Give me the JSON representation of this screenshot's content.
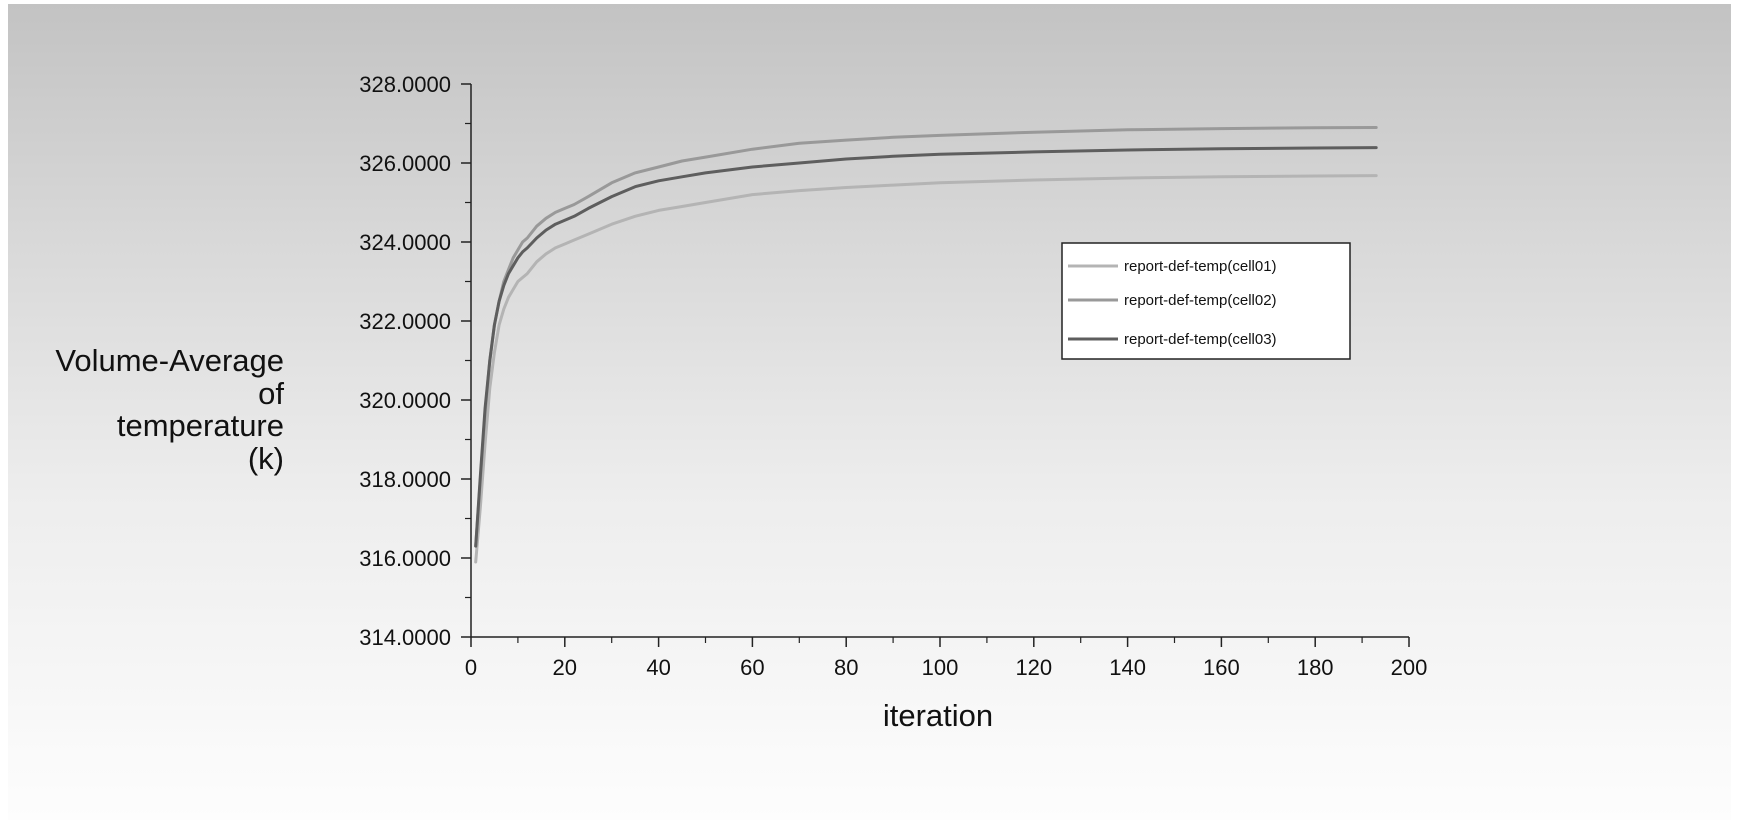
{
  "chart_data": {
    "type": "line",
    "title": "",
    "xlabel": "iteration",
    "ylabel_lines": [
      "Volume-Average",
      "of",
      "temperature",
      "(k)"
    ],
    "xlim": [
      0,
      200
    ],
    "ylim": [
      314,
      328
    ],
    "x_ticks": [
      0,
      20,
      40,
      60,
      80,
      100,
      120,
      140,
      160,
      180,
      200
    ],
    "x_tick_labels": [
      "0",
      "20",
      "40",
      "60",
      "80",
      "100",
      "120",
      "140",
      "160",
      "180",
      "200"
    ],
    "y_ticks": [
      314,
      316,
      318,
      320,
      322,
      324,
      326,
      328
    ],
    "y_tick_labels": [
      "314.0000",
      "316.0000",
      "318.0000",
      "320.0000",
      "322.0000",
      "324.0000",
      "326.0000",
      "328.0000"
    ],
    "grid": false,
    "legend_position": "right",
    "series": [
      {
        "name": "report-def-temp(cell01)",
        "color": "#b4b4b4",
        "x": [
          1,
          2,
          3,
          4,
          5,
          6,
          7,
          8,
          9,
          10,
          11,
          12,
          14,
          16,
          18,
          20,
          22,
          25,
          30,
          35,
          40,
          45,
          50,
          60,
          70,
          80,
          90,
          100,
          120,
          140,
          160,
          180,
          193
        ],
        "values": [
          315.9,
          317.3,
          318.9,
          320.3,
          321.2,
          321.9,
          322.3,
          322.6,
          322.8,
          323.0,
          323.1,
          323.2,
          323.5,
          323.7,
          323.85,
          323.95,
          324.05,
          324.2,
          324.45,
          324.65,
          324.8,
          324.9,
          325.0,
          325.2,
          325.3,
          325.38,
          325.44,
          325.5,
          325.57,
          325.62,
          325.65,
          325.67,
          325.68
        ]
      },
      {
        "name": "report-def-temp(cell02)",
        "color": "#999999",
        "x": [
          1,
          2,
          3,
          4,
          5,
          6,
          7,
          8,
          9,
          10,
          11,
          12,
          14,
          16,
          18,
          20,
          22,
          25,
          30,
          35,
          40,
          45,
          50,
          60,
          70,
          80,
          90,
          100,
          120,
          140,
          160,
          180,
          193
        ],
        "values": [
          316.3,
          318.0,
          319.7,
          321.0,
          321.9,
          322.5,
          323.0,
          323.3,
          323.6,
          323.8,
          324.0,
          324.1,
          324.4,
          324.6,
          324.75,
          324.85,
          324.95,
          325.15,
          325.5,
          325.75,
          325.9,
          326.05,
          326.15,
          326.35,
          326.5,
          326.58,
          326.65,
          326.7,
          326.78,
          326.84,
          326.87,
          326.89,
          326.9
        ]
      },
      {
        "name": "report-def-temp(cell03)",
        "color": "#5e5e5e",
        "x": [
          1,
          2,
          3,
          4,
          5,
          6,
          7,
          8,
          9,
          10,
          11,
          12,
          14,
          16,
          18,
          20,
          22,
          25,
          30,
          35,
          40,
          45,
          50,
          60,
          70,
          80,
          90,
          100,
          120,
          140,
          160,
          180,
          193
        ],
        "values": [
          316.3,
          318.1,
          319.8,
          321.0,
          321.9,
          322.5,
          322.9,
          323.2,
          323.4,
          323.6,
          323.75,
          323.85,
          324.1,
          324.3,
          324.45,
          324.55,
          324.65,
          324.85,
          325.15,
          325.4,
          325.55,
          325.65,
          325.75,
          325.9,
          326.0,
          326.1,
          326.17,
          326.22,
          326.28,
          326.33,
          326.36,
          326.38,
          326.39
        ]
      }
    ]
  }
}
